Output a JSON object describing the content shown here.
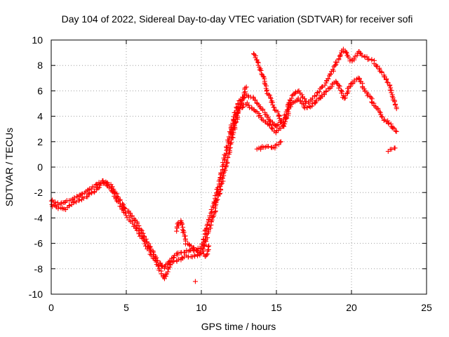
{
  "chart_data": {
    "type": "scatter",
    "title": "Day 104 of 2022, Sidereal Day-to-day VTEC variation (SDTVAR) for receiver sofi",
    "xlabel": "GPS time / hours",
    "ylabel": "SDTVAR / TECUs",
    "xlim": [
      0,
      25
    ],
    "ylim": [
      -10,
      10
    ],
    "grid": true,
    "marker": "+",
    "colors": {
      "series": "#ff0000",
      "grid": "#a0a0a0",
      "axis": "#000000"
    },
    "x_ticks": [
      "0",
      "5",
      "10",
      "15",
      "20",
      "25"
    ],
    "y_ticks": [
      "-10",
      "-8",
      "-6",
      "-4",
      "-2",
      "0",
      "2",
      "4",
      "6",
      "8",
      "10"
    ],
    "series": [
      {
        "name": "SDTVAR",
        "tracks": [
          {
            "x": [
              0,
              0.5,
              1,
              1.5,
              2,
              2.5,
              3,
              3.5,
              4,
              4.5,
              5,
              5.5,
              6,
              6.5,
              7,
              7.5,
              8,
              8.5,
              9,
              9.5,
              10,
              10.5,
              11,
              11.5,
              12,
              12.5,
              13,
              13.5,
              14,
              14.5,
              15,
              15.5,
              16,
              16.5,
              17,
              17.5,
              18,
              18.5,
              19,
              19.5,
              20,
              20.5,
              21,
              21.5,
              22,
              22.5,
              23
            ],
            "y": [
              -2.6,
              -2.9,
              -2.7,
              -2.5,
              -2.1,
              -1.8,
              -1.4,
              -1.1,
              -1.5,
              -2.5,
              -3.3,
              -4.0,
              -5.0,
              -6.2,
              -7.2,
              -8.0,
              -7.2,
              -6.8,
              -6.6,
              -6.5,
              -6.4,
              -4.2,
              -2.2,
              0.5,
              3.2,
              5.2,
              5.6,
              5.4,
              4.6,
              3.8,
              3.2,
              3.8,
              5.6,
              6.0,
              5.0,
              5.5,
              6.2,
              7.0,
              8.2,
              9.3,
              8.3,
              9.1,
              8.6,
              8.3,
              7.5,
              6.5,
              4.6
            ]
          },
          {
            "x": [
              0,
              0.5,
              1,
              1.5,
              2,
              2.5,
              3,
              3.5,
              4,
              4.5,
              5,
              5.5,
              6,
              6.5,
              7,
              7.5,
              8,
              8.5,
              9,
              9.5,
              10,
              10.5,
              11,
              11.5,
              12,
              12.5,
              13
            ],
            "y": [
              -3.0,
              -3.2,
              -3.3,
              -2.8,
              -2.5,
              -2.2,
              -1.8,
              -1.2,
              -1.8,
              -2.8,
              -3.8,
              -4.5,
              -5.5,
              -6.6,
              -7.5,
              -8.8,
              -7.5,
              -7.3,
              -7.0,
              -7.0,
              -6.8,
              -5.0,
              -3.0,
              -0.5,
              2.0,
              4.5,
              6.3
            ]
          },
          {
            "x": [
              12,
              12.5,
              13,
              13.5,
              14,
              14.5,
              15,
              15.5,
              16,
              16.5,
              17,
              17.5,
              18,
              18.5,
              19,
              19.5,
              20,
              20.5,
              21,
              21.5,
              22,
              22.5,
              23
            ],
            "y": [
              2.6,
              4.6,
              5.0,
              4.5,
              3.9,
              3.3,
              2.7,
              3.4,
              5.0,
              5.4,
              4.6,
              5.0,
              5.6,
              6.2,
              6.8,
              5.4,
              6.6,
              7.0,
              5.8,
              5.0,
              4.0,
              3.4,
              2.8
            ]
          },
          {
            "x": [
              13.5,
              14,
              14.5,
              15,
              15.5
            ],
            "y": [
              9.0,
              7.4,
              5.6,
              4.4,
              3.2
            ]
          },
          {
            "x": [
              8.3,
              8.6,
              9,
              9.5,
              10,
              10.3,
              10.5
            ],
            "y": [
              -5.0,
              -4.2,
              -6.0,
              -6.4,
              -6.8,
              -7.0,
              -6.2
            ]
          },
          {
            "x": [
              13.7,
              14.2,
              14.8,
              15.3
            ],
            "y": [
              1.4,
              1.6,
              1.5,
              2.0
            ]
          },
          {
            "x": [
              22.5,
              22.9
            ],
            "y": [
              1.3,
              1.5
            ]
          },
          {
            "x": [
              9.6
            ],
            "y": [
              -9.0
            ]
          }
        ]
      }
    ]
  }
}
